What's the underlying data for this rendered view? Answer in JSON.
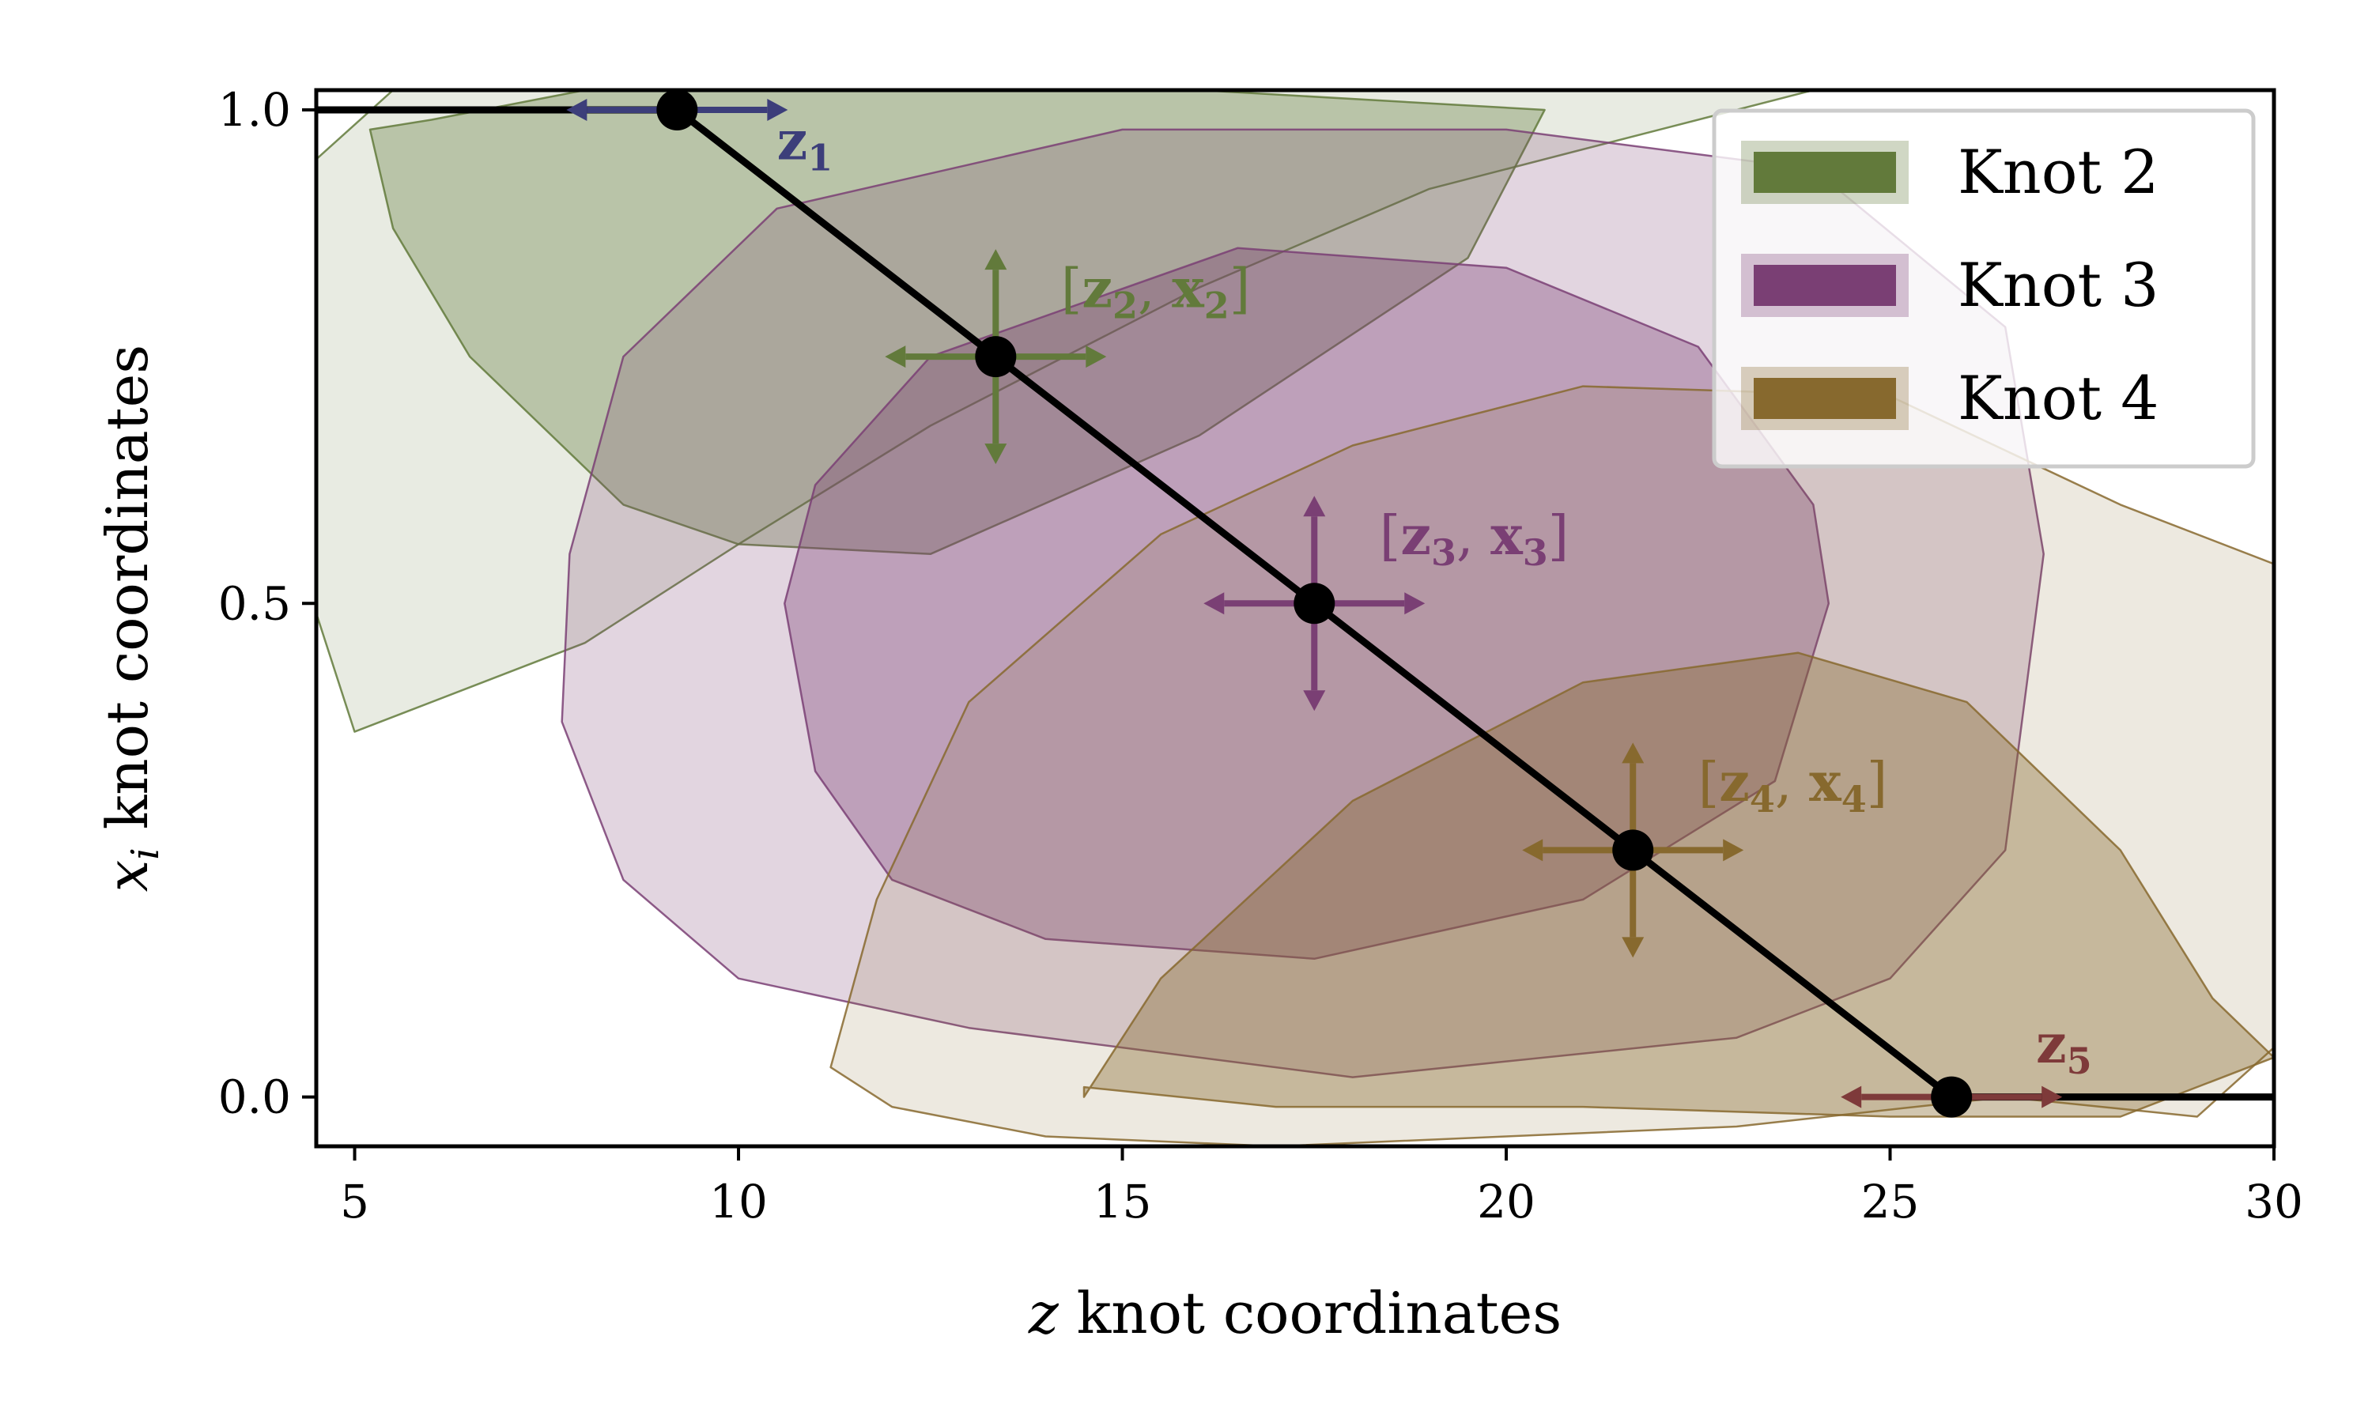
{
  "chart_data": {
    "type": "area",
    "xlabel": "z knot coordinates",
    "ylabel": "x_i knot coordinates",
    "xlabel_italic": "z",
    "xlabel_rest": " knot coordinates",
    "ylabel_italic": "x",
    "ylabel_sub": "i",
    "ylabel_rest": " knot coordinates",
    "xlim": [
      4.5,
      30
    ],
    "ylim": [
      -0.05,
      1.02
    ],
    "xticks": [
      5,
      10,
      15,
      20,
      25,
      30
    ],
    "xtick_labels": [
      "5",
      "10",
      "15",
      "20",
      "25",
      "30"
    ],
    "yticks": [
      0.0,
      0.5,
      1.0
    ],
    "ytick_labels": [
      "0.0",
      "0.5",
      "1.0"
    ],
    "grid": false,
    "legend_placement": "top-right",
    "legend": [
      {
        "label": "Knot 2",
        "color": "#627a3b"
      },
      {
        "label": "Knot 3",
        "color": "#7a3f74"
      },
      {
        "label": "Knot 4",
        "color": "#87692e"
      }
    ],
    "line": {
      "color": "#000000",
      "points": [
        {
          "x": 4.5,
          "y": 1.0
        },
        {
          "x": 9.2,
          "y": 1.0
        },
        {
          "x": 13.35,
          "y": 0.75
        },
        {
          "x": 17.5,
          "y": 0.5
        },
        {
          "x": 21.65,
          "y": 0.25
        },
        {
          "x": 25.8,
          "y": 0.0
        },
        {
          "x": 30,
          "y": 0.0
        }
      ]
    },
    "knots": [
      {
        "x": 9.2,
        "y": 1.0
      },
      {
        "x": 13.35,
        "y": 0.75
      },
      {
        "x": 17.5,
        "y": 0.5
      },
      {
        "x": 21.65,
        "y": 0.25
      },
      {
        "x": 25.8,
        "y": 0.0
      }
    ],
    "annotations": [
      {
        "label": "z1",
        "base": "z",
        "sub": "1",
        "color": "#3c3e7a",
        "x": 9.2,
        "y": 1.0,
        "dir": "h",
        "tx": 10.5,
        "ty": 0.95
      },
      {
        "label": "[z2, x2]",
        "base": "z",
        "sub": "2",
        "color": "#627a3b",
        "x": 13.35,
        "y": 0.75,
        "dir": "hv",
        "tx": 14.2,
        "ty": 0.8,
        "bracket": true
      },
      {
        "label": "[z3, x3]",
        "base": "z",
        "sub": "3",
        "color": "#7a3f74",
        "x": 17.5,
        "y": 0.5,
        "dir": "hv",
        "tx": 18.35,
        "ty": 0.55,
        "bracket": true
      },
      {
        "label": "[z4, x4]",
        "base": "z",
        "sub": "4",
        "color": "#87692e",
        "x": 21.65,
        "y": 0.25,
        "dir": "hv",
        "tx": 22.5,
        "ty": 0.3,
        "bracket": true
      },
      {
        "label": "z5",
        "base": "z",
        "sub": "5",
        "color": "#7e3a3a",
        "x": 25.8,
        "y": 0.0,
        "dir": "h",
        "tx": 26.9,
        "ty": 0.035
      }
    ],
    "regions": [
      {
        "name": "Knot 2",
        "level": "outer",
        "color": "#627a3b",
        "opacity": 0.15,
        "points": [
          [
            4.5,
            0.95
          ],
          [
            5.5,
            1.02
          ],
          [
            12.5,
            1.02
          ],
          [
            18,
            1.02
          ],
          [
            24,
            1.02
          ],
          [
            22,
            0.98
          ],
          [
            19,
            0.92
          ],
          [
            16,
            0.82
          ],
          [
            12.5,
            0.68
          ],
          [
            10,
            0.56
          ],
          [
            8,
            0.46
          ],
          [
            5,
            0.37
          ],
          [
            4.5,
            0.49
          ]
        ]
      },
      {
        "name": "Knot 2",
        "level": "inner",
        "color": "#627a3b",
        "opacity": 0.35,
        "points": [
          [
            5.2,
            0.98
          ],
          [
            6,
            0.99
          ],
          [
            8,
            1.02
          ],
          [
            12,
            1.02
          ],
          [
            16,
            1.02
          ],
          [
            20.5,
            1.0
          ],
          [
            19.5,
            0.85
          ],
          [
            16,
            0.67
          ],
          [
            12.5,
            0.55
          ],
          [
            10,
            0.56
          ],
          [
            8.5,
            0.6
          ],
          [
            6.5,
            0.75
          ],
          [
            5.5,
            0.88
          ]
        ]
      },
      {
        "name": "Knot 3",
        "level": "outer",
        "color": "#7a3f74",
        "opacity": 0.22,
        "points": [
          [
            7.8,
            0.55
          ],
          [
            8.5,
            0.75
          ],
          [
            10.5,
            0.9
          ],
          [
            15,
            0.98
          ],
          [
            20,
            0.98
          ],
          [
            24,
            0.94
          ],
          [
            26.5,
            0.78
          ],
          [
            27,
            0.55
          ],
          [
            26.5,
            0.25
          ],
          [
            25,
            0.12
          ],
          [
            23,
            0.06
          ],
          [
            18,
            0.02
          ],
          [
            13,
            0.07
          ],
          [
            10,
            0.12
          ],
          [
            8.5,
            0.22
          ],
          [
            7.7,
            0.38
          ]
        ]
      },
      {
        "name": "Knot 3",
        "level": "inner",
        "color": "#7a3f74",
        "opacity": 0.35,
        "points": [
          [
            10.6,
            0.5
          ],
          [
            11,
            0.62
          ],
          [
            12.5,
            0.75
          ],
          [
            16.5,
            0.86
          ],
          [
            20,
            0.84
          ],
          [
            22.5,
            0.76
          ],
          [
            24,
            0.6
          ],
          [
            24.2,
            0.5
          ],
          [
            23.5,
            0.32
          ],
          [
            21,
            0.2
          ],
          [
            17.5,
            0.14
          ],
          [
            14,
            0.16
          ],
          [
            12,
            0.22
          ],
          [
            11,
            0.33
          ]
        ]
      },
      {
        "name": "Knot 4",
        "level": "outer",
        "color": "#87692e",
        "opacity": 0.15,
        "points": [
          [
            11.2,
            0.03
          ],
          [
            11.8,
            0.2
          ],
          [
            13,
            0.4
          ],
          [
            15.5,
            0.57
          ],
          [
            18,
            0.66
          ],
          [
            21,
            0.72
          ],
          [
            25,
            0.71
          ],
          [
            28,
            0.6
          ],
          [
            30,
            0.54
          ],
          [
            30,
            0.05
          ],
          [
            29,
            -0.02
          ],
          [
            26.5,
            0.0
          ],
          [
            23,
            -0.03
          ],
          [
            20,
            -0.04
          ],
          [
            17,
            -0.05
          ],
          [
            14,
            -0.04
          ],
          [
            12,
            -0.01
          ]
        ]
      },
      {
        "name": "Knot 4",
        "level": "inner",
        "color": "#87692e",
        "opacity": 0.38,
        "points": [
          [
            14.5,
            0.0
          ],
          [
            15.5,
            0.12
          ],
          [
            18,
            0.3
          ],
          [
            21,
            0.42
          ],
          [
            23.8,
            0.45
          ],
          [
            26,
            0.4
          ],
          [
            28,
            0.25
          ],
          [
            29.2,
            0.1
          ],
          [
            30,
            0.04
          ],
          [
            28,
            -0.02
          ],
          [
            25,
            -0.02
          ],
          [
            21,
            -0.01
          ],
          [
            17,
            -0.01
          ],
          [
            14.5,
            0.01
          ]
        ]
      }
    ]
  }
}
